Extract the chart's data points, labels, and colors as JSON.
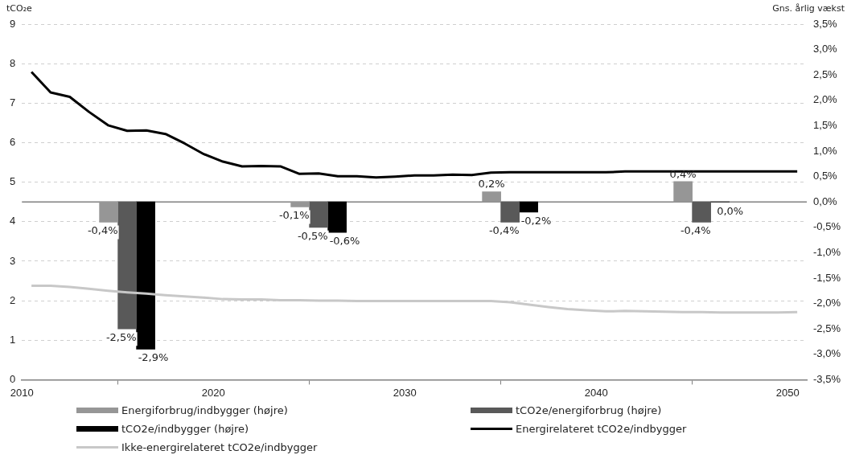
{
  "chart_data": {
    "type": "bar",
    "ylabel": "tCO₂e",
    "y2label": "Gns. årlig vækst",
    "xlim": [
      2010,
      2051
    ],
    "xticks": [
      2010,
      2020,
      2030,
      2040,
      2050
    ],
    "ylim": [
      0,
      9
    ],
    "yticks": [
      0,
      1,
      2,
      3,
      4,
      5,
      6,
      7,
      8,
      9
    ],
    "y2lim": [
      -3.5,
      3.5
    ],
    "y2ticks": [
      {
        "value": -3.5,
        "label": "-3,5%"
      },
      {
        "value": -3,
        "label": "-3,0%"
      },
      {
        "value": -2.5,
        "label": "-2,5%"
      },
      {
        "value": -2,
        "label": "-2,0%"
      },
      {
        "value": -1.5,
        "label": "-1,5%"
      },
      {
        "value": -1,
        "label": "-1,0%"
      },
      {
        "value": -0.5,
        "label": "-0,5%"
      },
      {
        "value": 0,
        "label": "0,0%"
      },
      {
        "value": 0.5,
        "label": "0,5%"
      },
      {
        "value": 1,
        "label": "1,0%"
      },
      {
        "value": 1.5,
        "label": "1,5%"
      },
      {
        "value": 2,
        "label": "2,0%"
      },
      {
        "value": 2.5,
        "label": "2,5%"
      },
      {
        "value": 3,
        "label": "3,0%"
      },
      {
        "value": 3.5,
        "label": "3,5%"
      }
    ],
    "grid": "y",
    "legend": "bottom",
    "marker": "none",
    "line_style": "solid",
    "ref_lines": [
      {
        "axis": "y2",
        "value": 0,
        "color": "#808080"
      }
    ],
    "series": [
      {
        "name": "Energiforbrug/indbygger (højre)",
        "axis": "y2",
        "color": "#969696",
        "x": [
          2015.5,
          2025.5,
          2035.5,
          2045.5
        ],
        "values": [
          -0.4,
          -0.1,
          0.2,
          0.4
        ],
        "value_labels": [
          "-0,4%",
          "-0,1%",
          "0,2%",
          "0,4%"
        ]
      },
      {
        "name": "tCO2e/energiforbrug (højre)",
        "axis": "y2",
        "color": "#595959",
        "x": [
          2015.5,
          2025.5,
          2035.5,
          2045.5
        ],
        "values": [
          -2.5,
          -0.5,
          -0.4,
          -0.4
        ],
        "value_labels": [
          "-2,5%",
          "-0,5%",
          "-0,4%",
          "-0,4%"
        ]
      },
      {
        "name": "tCO2e/indbygger (højre)",
        "axis": "y2",
        "color": "#000000",
        "x": [
          2015.5,
          2025.5,
          2035.5,
          2045.5
        ],
        "values": [
          -2.9,
          -0.6,
          -0.2,
          0.0
        ],
        "value_labels": [
          "-2,9%",
          "-0,6%",
          "-0,2%",
          "0,0%"
        ]
      },
      {
        "name": "Energirelateret tCO2e/indbygger",
        "type": "line",
        "color": "#000000",
        "x": [
          2010.5,
          2011.5,
          2012.5,
          2013.5,
          2014.5,
          2015.5,
          2016.5,
          2017.5,
          2018.5,
          2019.5,
          2020.5,
          2021.5,
          2022.5,
          2023.5,
          2024.5,
          2025.5,
          2026.5,
          2027.5,
          2028.5,
          2029.5,
          2030.5,
          2031.5,
          2032.5,
          2033.5,
          2034.5,
          2035.5,
          2036.5,
          2037.5,
          2038.5,
          2039.5,
          2040.5,
          2041.5,
          2042.5,
          2043.5,
          2044.5,
          2045.5,
          2046.5,
          2047.5,
          2048.5,
          2049.5,
          2050.5
        ],
        "values": [
          7.79,
          7.27,
          7.16,
          6.78,
          6.44,
          6.3,
          6.31,
          6.22,
          5.98,
          5.71,
          5.52,
          5.4,
          5.41,
          5.4,
          5.21,
          5.22,
          5.15,
          5.15,
          5.12,
          5.14,
          5.17,
          5.17,
          5.19,
          5.18,
          5.24,
          5.25,
          5.25,
          5.25,
          5.25,
          5.25,
          5.25,
          5.27,
          5.27,
          5.27,
          5.27,
          5.27,
          5.27,
          5.27,
          5.27,
          5.27,
          5.27
        ]
      },
      {
        "name": "Ikke-energirelateret  tCO2e/indbygger",
        "type": "line",
        "color": "#c8c8c8",
        "x": [
          2010.5,
          2011.5,
          2012.5,
          2013.5,
          2014.5,
          2015.5,
          2016.5,
          2017.5,
          2018.5,
          2019.5,
          2020.5,
          2021.5,
          2022.5,
          2023.5,
          2024.5,
          2025.5,
          2026.5,
          2027.5,
          2028.5,
          2029.5,
          2030.5,
          2031.5,
          2032.5,
          2033.5,
          2034.5,
          2035.5,
          2036.5,
          2037.5,
          2038.5,
          2039.5,
          2040.5,
          2041.5,
          2042.5,
          2043.5,
          2044.5,
          2045.5,
          2046.5,
          2047.5,
          2048.5,
          2049.5,
          2050.5
        ],
        "values": [
          2.38,
          2.38,
          2.35,
          2.3,
          2.25,
          2.21,
          2.18,
          2.14,
          2.11,
          2.08,
          2.04,
          2.03,
          2.03,
          2.01,
          2.01,
          2.0,
          2.0,
          1.99,
          1.99,
          1.99,
          1.99,
          1.99,
          1.99,
          1.99,
          1.99,
          1.96,
          1.9,
          1.84,
          1.79,
          1.76,
          1.73,
          1.74,
          1.73,
          1.72,
          1.71,
          1.71,
          1.7,
          1.7,
          1.7,
          1.7,
          1.71
        ]
      }
    ]
  }
}
